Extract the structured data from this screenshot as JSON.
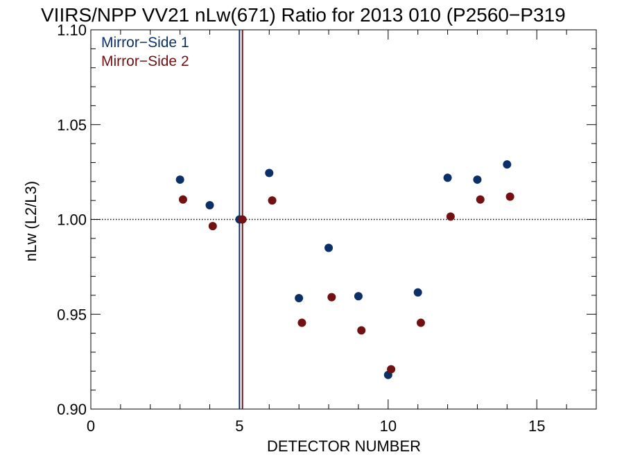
{
  "chart_data": {
    "type": "scatter",
    "title": "VIIRS/NPP VV21 nLw(671) Ratio for 2013 010 (P2560−P319",
    "xlabel": "DETECTOR NUMBER",
    "ylabel": "nLw (L2/L3)",
    "xlim": [
      0,
      17
    ],
    "ylim": [
      0.9,
      1.1
    ],
    "x_ticks": [
      0,
      5,
      10,
      15
    ],
    "x_tick_labels": [
      "0",
      "5",
      "10",
      "15"
    ],
    "y_ticks": [
      0.9,
      0.95,
      1.0,
      1.05,
      1.1
    ],
    "y_tick_labels": [
      "0.90",
      "0.95",
      "1.00",
      "1.05",
      "1.10"
    ],
    "reference_line": {
      "y": 1.0,
      "style": "dotted"
    },
    "legend_placement": "top-left",
    "series": [
      {
        "name": "Mirror−Side 1",
        "color": "#0b3068",
        "x": [
          3,
          4,
          5,
          6,
          7,
          8,
          9,
          10,
          11,
          12,
          13,
          14
        ],
        "y": [
          1.021,
          1.0075,
          1.0,
          1.0245,
          0.9585,
          0.985,
          0.9595,
          0.918,
          0.9615,
          1.022,
          1.021,
          1.029
        ],
        "vline_x": 5.0
      },
      {
        "name": "Mirror−Side 2",
        "color": "#721012",
        "x": [
          3.1,
          4.1,
          5.1,
          6.1,
          7.1,
          8.1,
          9.1,
          10.1,
          11.1,
          12.1,
          13.1,
          14.1
        ],
        "y": [
          1.0105,
          0.9965,
          1.0,
          1.01,
          0.9455,
          0.959,
          0.9415,
          0.921,
          0.9455,
          1.0015,
          1.0105,
          1.012
        ],
        "vline_x": 5.1
      }
    ]
  }
}
